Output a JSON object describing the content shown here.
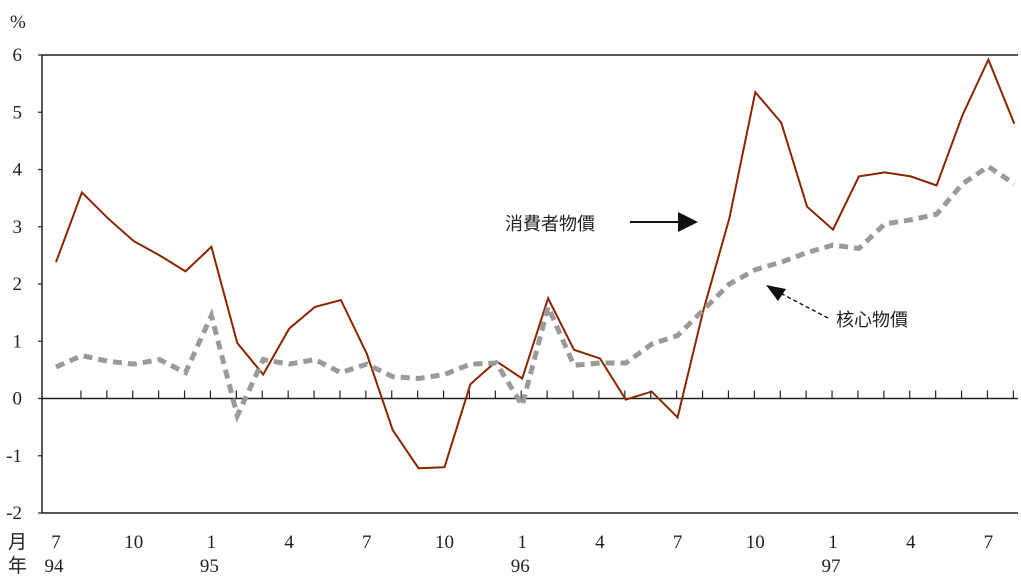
{
  "chart_data": {
    "type": "line",
    "y_unit": "%",
    "ylim": [
      -2,
      6
    ],
    "y_ticks": [
      "-2",
      "-1",
      "0",
      "1",
      "2",
      "3",
      "4",
      "5",
      "6"
    ],
    "x_row_labels": {
      "month": "月",
      "year": "年"
    },
    "x_month_labels": [
      {
        "i": 0,
        "label": "7"
      },
      {
        "i": 3,
        "label": "10"
      },
      {
        "i": 6,
        "label": "1"
      },
      {
        "i": 9,
        "label": "4"
      },
      {
        "i": 12,
        "label": "7"
      },
      {
        "i": 15,
        "label": "10"
      },
      {
        "i": 18,
        "label": "1"
      },
      {
        "i": 21,
        "label": "4"
      },
      {
        "i": 24,
        "label": "7"
      },
      {
        "i": 27,
        "label": "10"
      },
      {
        "i": 30,
        "label": "1"
      },
      {
        "i": 33,
        "label": "4"
      },
      {
        "i": 36,
        "label": "7"
      }
    ],
    "x_year_labels": [
      {
        "i": 0,
        "label": "94"
      },
      {
        "i": 6,
        "label": "95"
      },
      {
        "i": 18,
        "label": "96"
      },
      {
        "i": 30,
        "label": "97"
      }
    ],
    "x": [
      "1994-07",
      "1994-08",
      "1994-09",
      "1994-10",
      "1994-11",
      "1994-12",
      "1995-01",
      "1995-02",
      "1995-03",
      "1995-04",
      "1995-05",
      "1995-06",
      "1995-07",
      "1995-08",
      "1995-09",
      "1995-10",
      "1995-11",
      "1995-12",
      "1996-01",
      "1996-02",
      "1996-03",
      "1996-04",
      "1996-05",
      "1996-06",
      "1996-07",
      "1996-08",
      "1996-09",
      "1996-10",
      "1996-11",
      "1996-12",
      "1997-01",
      "1997-02",
      "1997-03",
      "1997-04",
      "1997-05",
      "1997-06",
      "1997-07",
      "1997-08"
    ],
    "series": [
      {
        "name": "消費者物價",
        "color": "#8b2500",
        "style": "solid",
        "values": [
          2.38,
          3.6,
          3.15,
          2.75,
          2.5,
          2.22,
          2.65,
          0.97,
          0.42,
          1.22,
          1.6,
          1.72,
          0.78,
          -0.55,
          -1.22,
          -1.2,
          0.25,
          0.65,
          0.35,
          1.75,
          0.85,
          0.7,
          -0.02,
          0.12,
          -0.33,
          1.55,
          3.15,
          5.35,
          4.82,
          3.35,
          2.95,
          3.88,
          3.95,
          3.88,
          3.72,
          4.95,
          5.92,
          4.8
        ]
      },
      {
        "name": "核心物價",
        "color": "#9a9a9a",
        "style": "dashed",
        "values": [
          0.55,
          0.75,
          0.65,
          0.6,
          0.68,
          0.45,
          1.45,
          -0.3,
          0.68,
          0.6,
          0.68,
          0.45,
          0.6,
          0.38,
          0.35,
          0.42,
          0.6,
          0.62,
          -0.12,
          1.6,
          0.58,
          0.62,
          0.62,
          0.95,
          1.1,
          1.55,
          2.0,
          2.25,
          2.38,
          2.55,
          2.68,
          2.62,
          3.05,
          3.12,
          3.22,
          3.75,
          4.05,
          3.75
        ]
      }
    ]
  }
}
